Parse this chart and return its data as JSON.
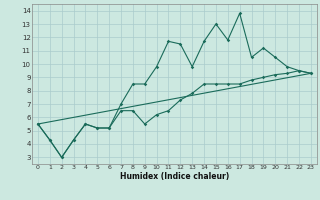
{
  "title": "",
  "xlabel": "Humidex (Indice chaleur)",
  "ylabel": "",
  "bg_color": "#cce8e0",
  "line_color": "#1a6b5a",
  "grid_color": "#aacccc",
  "xlim": [
    -0.5,
    23.5
  ],
  "ylim": [
    2.5,
    14.5
  ],
  "xticks": [
    0,
    1,
    2,
    3,
    4,
    5,
    6,
    7,
    8,
    9,
    10,
    11,
    12,
    13,
    14,
    15,
    16,
    17,
    18,
    19,
    20,
    21,
    22,
    23
  ],
  "yticks": [
    3,
    4,
    5,
    6,
    7,
    8,
    9,
    10,
    11,
    12,
    13,
    14
  ],
  "series1_x": [
    0,
    1,
    2,
    3,
    4,
    5,
    6,
    7,
    8,
    9,
    10,
    11,
    12,
    13,
    14,
    15,
    16,
    17,
    18,
    19,
    20,
    21,
    22,
    23
  ],
  "series1_y": [
    5.5,
    4.3,
    3.0,
    4.3,
    5.5,
    5.2,
    5.2,
    7.0,
    8.5,
    8.5,
    9.8,
    11.7,
    11.5,
    9.8,
    11.7,
    13.0,
    11.8,
    13.8,
    10.5,
    11.2,
    10.5,
    9.8,
    9.5,
    9.3
  ],
  "series2_x": [
    0,
    1,
    2,
    3,
    4,
    5,
    6,
    7,
    8,
    9,
    10,
    11,
    12,
    13,
    14,
    15,
    16,
    17,
    18,
    19,
    20,
    21,
    22,
    23
  ],
  "series2_y": [
    5.5,
    4.3,
    3.0,
    4.3,
    5.5,
    5.2,
    5.2,
    6.5,
    6.5,
    5.5,
    6.2,
    6.5,
    7.3,
    7.8,
    8.5,
    8.5,
    8.5,
    8.5,
    8.8,
    9.0,
    9.2,
    9.3,
    9.5,
    9.3
  ],
  "series3_x": [
    0,
    23
  ],
  "series3_y": [
    5.5,
    9.3
  ]
}
